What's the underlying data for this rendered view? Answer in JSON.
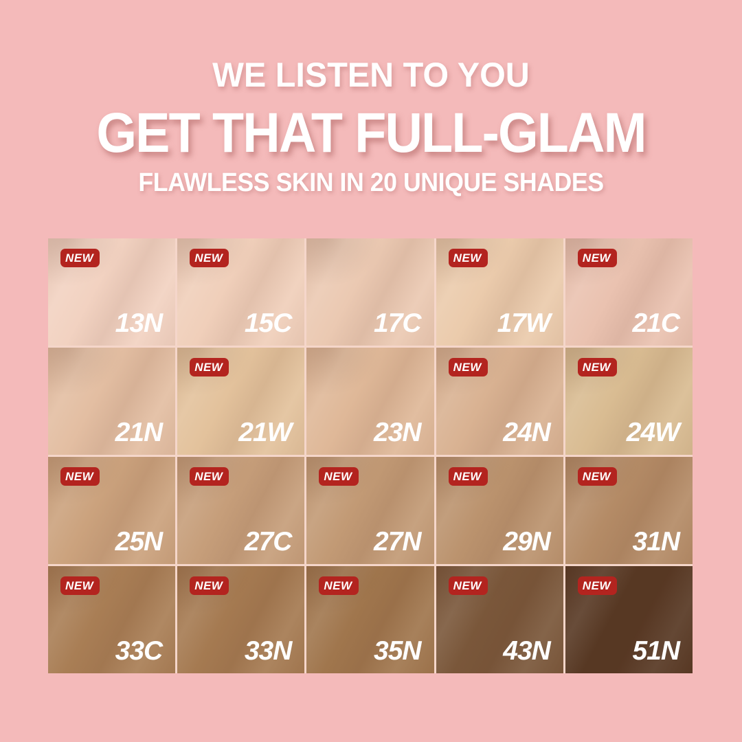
{
  "page": {
    "background_color": "#F4BABA"
  },
  "header": {
    "tagline": "WE LISTEN TO YOU",
    "title": "GET THAT FULL-GLAM",
    "subtitle": "FLAWLESS SKIN IN 20 UNIQUE SHADES"
  },
  "badge": {
    "label": "NEW",
    "color": "#B3241F"
  },
  "shades": [
    {
      "code": "13N",
      "new": true,
      "color": "#F2D2C1"
    },
    {
      "code": "15C",
      "new": true,
      "color": "#F0CFBA"
    },
    {
      "code": "17C",
      "new": false,
      "color": "#EBC9B2"
    },
    {
      "code": "17W",
      "new": true,
      "color": "#EBCBAC"
    },
    {
      "code": "21C",
      "new": true,
      "color": "#EAC2B0"
    },
    {
      "code": "21N",
      "new": false,
      "color": "#E3BEA2"
    },
    {
      "code": "21W",
      "new": true,
      "color": "#E3C29C"
    },
    {
      "code": "23N",
      "new": false,
      "color": "#DFB898"
    },
    {
      "code": "24N",
      "new": true,
      "color": "#D9B292"
    },
    {
      "code": "24W",
      "new": true,
      "color": "#D9BC92"
    },
    {
      "code": "25N",
      "new": true,
      "color": "#CBA27D"
    },
    {
      "code": "27C",
      "new": true,
      "color": "#C69E7A"
    },
    {
      "code": "27N",
      "new": true,
      "color": "#C29A75"
    },
    {
      "code": "29N",
      "new": true,
      "color": "#BB936E"
    },
    {
      "code": "31N",
      "new": true,
      "color": "#B48B66"
    },
    {
      "code": "33C",
      "new": true,
      "color": "#A97E55"
    },
    {
      "code": "33N",
      "new": true,
      "color": "#A57A51"
    },
    {
      "code": "35N",
      "new": true,
      "color": "#A0764D"
    },
    {
      "code": "43N",
      "new": true,
      "color": "#7A573A"
    },
    {
      "code": "51N",
      "new": true,
      "color": "#573823"
    }
  ]
}
